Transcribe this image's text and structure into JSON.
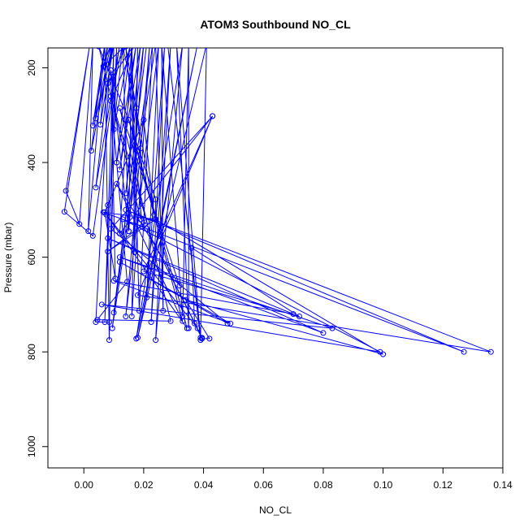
{
  "chart_data": {
    "type": "line",
    "title": "ATOM3 Southbound NO_CL",
    "xlabel": "NO_CL",
    "ylabel": "Pressure (mbar)",
    "xlim": [
      -0.012,
      0.14
    ],
    "ylim": [
      1045,
      158
    ],
    "y_reversed": true,
    "x_ticks": [
      0.0,
      0.02,
      0.04,
      0.06,
      0.08,
      0.1,
      0.12,
      0.14
    ],
    "x_tick_labels": [
      "0.00",
      "0.02",
      "0.04",
      "0.06",
      "0.08",
      "0.10",
      "0.12",
      "0.14"
    ],
    "y_ticks": [
      200,
      400,
      600,
      800,
      1000
    ],
    "y_tick_labels": [
      "200",
      "400",
      "600",
      "800",
      "1000"
    ],
    "grid": false,
    "color": "#0000ff",
    "series": [
      {
        "points": [
          [
            0.009,
            150
          ],
          [
            0.004,
            737
          ],
          [
            0.0085,
            737
          ],
          [
            0.011,
            150
          ],
          [
            0.007,
            737
          ],
          [
            0.01,
            150
          ],
          [
            0.0085,
            775
          ],
          [
            0.007,
            150
          ],
          [
            0.0015,
            545
          ],
          [
            0.003,
            150
          ],
          [
            -0.0015,
            530
          ],
          [
            -0.006,
            460
          ],
          [
            0.002,
            150
          ],
          [
            -0.0065,
            504
          ],
          [
            0.003,
            555
          ],
          [
            0.012,
            150
          ],
          [
            0.004,
            453
          ],
          [
            0.0095,
            150
          ],
          [
            0.0025,
            375
          ],
          [
            0.007,
            150
          ],
          [
            0.003,
            322
          ],
          [
            0.008,
            150
          ],
          [
            0.0055,
            320
          ],
          [
            0.01,
            150
          ],
          [
            0.004,
            307
          ],
          [
            0.009,
            150
          ],
          [
            0.0065,
            197
          ],
          [
            0.0145,
            150
          ],
          [
            0.008,
            233
          ],
          [
            0.017,
            150
          ],
          [
            0.009,
            270
          ],
          [
            0.013,
            150
          ],
          [
            0.01,
            330
          ],
          [
            0.0155,
            150
          ],
          [
            0.011,
            400
          ],
          [
            0.0175,
            150
          ],
          [
            0.012,
            415
          ],
          [
            0.019,
            150
          ],
          [
            0.014,
            465
          ],
          [
            0.02,
            150
          ],
          [
            0.015,
            545
          ],
          [
            0.016,
            150
          ],
          [
            0.017,
            590
          ],
          [
            0.018,
            150
          ],
          [
            0.016,
            725
          ],
          [
            0.022,
            150
          ],
          [
            0.014,
            725
          ],
          [
            0.025,
            150
          ],
          [
            0.021,
            685
          ],
          [
            0.027,
            150
          ],
          [
            0.0225,
            737
          ],
          [
            0.029,
            150
          ],
          [
            0.024,
            775
          ],
          [
            0.033,
            150
          ],
          [
            0.0175,
            772
          ],
          [
            0.038,
            150
          ],
          [
            0.018,
            770
          ],
          [
            0.041,
            150
          ],
          [
            0.039,
            770
          ],
          [
            0.028,
            150
          ],
          [
            0.039,
            775
          ],
          [
            0.031,
            150
          ],
          [
            0.035,
            750
          ],
          [
            0.035,
            150
          ],
          [
            0.033,
            725
          ],
          [
            0.026,
            150
          ],
          [
            0.0265,
            713
          ],
          [
            0.024,
            150
          ],
          [
            0.0095,
            750
          ],
          [
            0.021,
            150
          ],
          [
            0.01,
            717
          ],
          [
            0.023,
            150
          ],
          [
            0.0185,
            713
          ],
          [
            0.016,
            150
          ],
          [
            0.012,
            550
          ],
          [
            0.043,
            302
          ],
          [
            0.009,
            540
          ],
          [
            0.048,
            740
          ],
          [
            0.012,
            610
          ],
          [
            0.049,
            740
          ],
          [
            0.01,
            650
          ],
          [
            0.07,
            720
          ],
          [
            0.008,
            560
          ],
          [
            0.08,
            760
          ],
          [
            0.012,
            600
          ],
          [
            0.083,
            750
          ],
          [
            0.006,
            700
          ],
          [
            0.099,
            800
          ],
          [
            0.013,
            520
          ],
          [
            0.127,
            800
          ],
          [
            0.014,
            500
          ],
          [
            0.136,
            800
          ],
          [
            0.018,
            680
          ],
          [
            0.043,
            302
          ],
          [
            0.02,
            630
          ],
          [
            0.072,
            725
          ],
          [
            0.036,
            580
          ],
          [
            0.037,
            740
          ],
          [
            0.0395,
            772
          ],
          [
            0.042,
            772
          ],
          [
            0.034,
            690
          ],
          [
            0.1,
            805
          ],
          [
            0.024,
            520
          ],
          [
            0.024,
            478
          ],
          [
            0.015,
            310
          ],
          [
            0.005,
            155
          ],
          [
            0.019,
            520
          ],
          [
            0.019,
            370
          ],
          [
            0.0175,
            285
          ],
          [
            0.013,
            155
          ],
          [
            0.015,
            545
          ],
          [
            0.009,
            205
          ],
          [
            0.0105,
            645
          ],
          [
            0.007,
            505
          ],
          [
            0.008,
            490
          ],
          [
            0.02,
            310
          ],
          [
            0.0235,
            510
          ],
          [
            0.014,
            155
          ],
          [
            0.0195,
            535
          ],
          [
            0.0065,
            505
          ],
          [
            0.024,
            520
          ],
          [
            0.008,
            588
          ],
          [
            0.021,
            525
          ],
          [
            0.009,
            260
          ],
          [
            0.0145,
            652
          ],
          [
            0.0045,
            732
          ],
          [
            0.029,
            735
          ],
          [
            0.012,
            285
          ],
          [
            0.032,
            660
          ],
          [
            0.011,
            445
          ],
          [
            0.033,
            735
          ],
          [
            0.015,
            310
          ],
          [
            0.0345,
            750
          ],
          [
            0.0075,
            510
          ],
          [
            0.038,
            750
          ],
          [
            0.021,
            540
          ],
          [
            0.0395,
            770
          ]
        ]
      }
    ]
  }
}
